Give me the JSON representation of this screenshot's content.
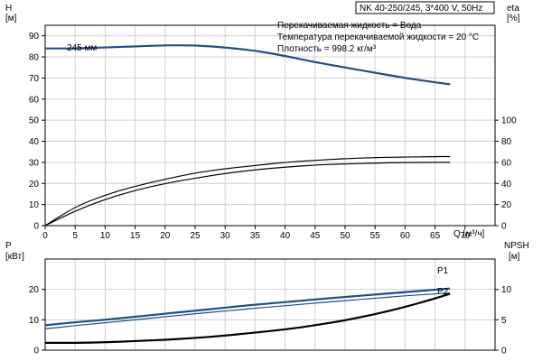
{
  "header_box": "NK 40-250/245, 3*400 V, 50Hz",
  "info_lines": [
    "Перекачиваемая жидкость = Вода",
    "Температура перекачиваемой жидкости = 20 °C",
    "Плотность = 998.2 кг/м³"
  ],
  "chart_data": [
    {
      "type": "line",
      "panel": "top",
      "ylabel_left": [
        "H",
        "[м]"
      ],
      "ylabel_right": [
        "eta",
        "[%]"
      ],
      "xlabel": "Q [м³/ч]",
      "xlim": [
        0,
        75
      ],
      "xticks": [
        0,
        5,
        10,
        15,
        20,
        25,
        30,
        35,
        40,
        45,
        50,
        55,
        60,
        65,
        70
      ],
      "ylim_left": [
        0,
        95
      ],
      "yticks_left": [
        0,
        10,
        20,
        30,
        40,
        50,
        60,
        70,
        80,
        90
      ],
      "ylim_right": [
        0,
        190
      ],
      "yticks_right": [
        0,
        20,
        40,
        60,
        80,
        100
      ],
      "grid": true,
      "annotation": "245 мм",
      "series": [
        {
          "key": "H",
          "axis": "left",
          "color": "#1f4e8c",
          "x": [
            0,
            5,
            10,
            15,
            20,
            25,
            30,
            35,
            40,
            45,
            50,
            55,
            60,
            65,
            67.5
          ],
          "y": [
            84,
            84,
            84.5,
            85,
            85.5,
            85.5,
            84.5,
            83,
            80.5,
            77.5,
            75,
            72.5,
            70,
            68,
            67
          ]
        },
        {
          "key": "eta_upper",
          "axis": "right",
          "color": "#000000",
          "x": [
            0,
            5,
            10,
            15,
            20,
            25,
            30,
            35,
            40,
            45,
            50,
            55,
            60,
            65,
            67.5
          ],
          "y": [
            0,
            18,
            29,
            37.5,
            44,
            50,
            54,
            57,
            60,
            62,
            63.5,
            64.5,
            65,
            65.5,
            65.5
          ]
        },
        {
          "key": "eta_lower",
          "axis": "right",
          "color": "#000000",
          "x": [
            0,
            5,
            10,
            15,
            20,
            25,
            30,
            35,
            40,
            45,
            50,
            55,
            60,
            65,
            67.5
          ],
          "y": [
            0,
            14,
            25,
            33.5,
            40,
            45,
            49.5,
            53,
            55.5,
            57.5,
            58.5,
            59.3,
            59.8,
            60,
            60
          ]
        }
      ]
    },
    {
      "type": "line",
      "panel": "bottom",
      "ylabel_left": [
        "P",
        "[кВт]"
      ],
      "ylabel_right": [
        "NPSH",
        "[м]"
      ],
      "xlim": [
        0,
        75
      ],
      "ylim_left": [
        0,
        30
      ],
      "yticks_left": [
        0,
        10,
        20
      ],
      "ylim_right": [
        0,
        15
      ],
      "yticks_right": [
        0,
        5,
        10
      ],
      "grid": true,
      "series": [
        {
          "name": "P1",
          "axis": "left",
          "color": "#1f4e8c",
          "x": [
            0,
            5,
            10,
            15,
            20,
            25,
            30,
            35,
            40,
            45,
            50,
            55,
            60,
            65,
            67.5
          ],
          "y": [
            8.2,
            9.2,
            10,
            11,
            12,
            13,
            14,
            15,
            15.8,
            16.7,
            17.5,
            18.3,
            19.1,
            19.9,
            20.3
          ]
        },
        {
          "name": "P2",
          "axis": "left",
          "color": "#1f4e8c",
          "x": [
            0,
            5,
            10,
            15,
            20,
            25,
            30,
            35,
            40,
            45,
            50,
            55,
            60,
            65,
            67.5
          ],
          "y": [
            7,
            8.1,
            9,
            10,
            11,
            12,
            12.9,
            13.8,
            14.6,
            15.5,
            16.3,
            17.1,
            17.9,
            18.5,
            18.8
          ]
        },
        {
          "key": "NPSH",
          "axis": "right",
          "color": "#000000",
          "x": [
            0,
            5,
            10,
            15,
            20,
            25,
            30,
            35,
            40,
            45,
            50,
            55,
            60,
            65,
            67.5
          ],
          "y": [
            1.2,
            1.2,
            1.3,
            1.5,
            1.7,
            2,
            2.4,
            2.9,
            3.4,
            4.1,
            4.9,
            5.9,
            7.1,
            8.5,
            9.3
          ]
        }
      ]
    }
  ]
}
